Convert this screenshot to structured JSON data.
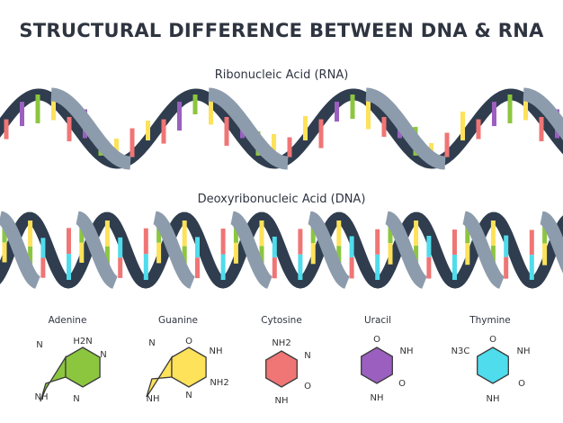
{
  "title": "STRUCTURAL DIFFERENCE BETWEEN DNA & RNA",
  "rna": {
    "label": "Ribonucleic Acid (RNA)"
  },
  "dna": {
    "label": "Deoxyribonucleic Acid (DNA)"
  },
  "colors": {
    "backbone_dark": "#2f3d4f",
    "backbone_light": "#8d9cac",
    "adenine": "#8cc63f",
    "guanine": "#fde25a",
    "cytosine": "#f07575",
    "uracil": "#9b5fc0",
    "thymine": "#4fdcec"
  },
  "bases": [
    {
      "name": "Adenine",
      "atoms": [
        "N",
        "H2N",
        "N",
        "NH",
        "N"
      ]
    },
    {
      "name": "Guanine",
      "atoms": [
        "O",
        "N",
        "NH",
        "NH2",
        "NH",
        "N"
      ]
    },
    {
      "name": "Cytosine",
      "atoms": [
        "NH2",
        "N",
        "O",
        "NH"
      ]
    },
    {
      "name": "Uracil",
      "atoms": [
        "O",
        "NH",
        "O",
        "NH"
      ]
    },
    {
      "name": "Thymine",
      "atoms": [
        "O",
        "N3C",
        "NH",
        "O",
        "NH"
      ]
    }
  ]
}
